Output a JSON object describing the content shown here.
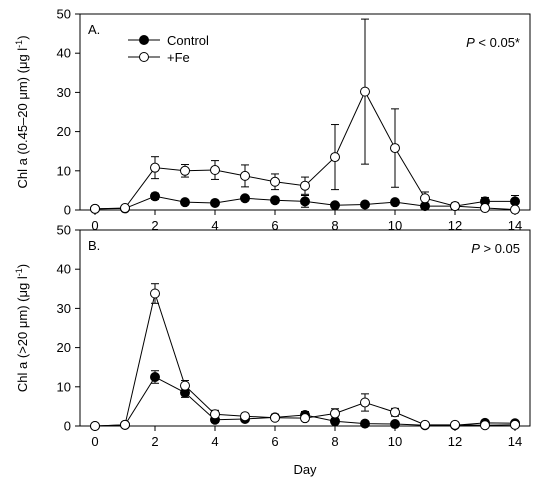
{
  "chart_data": [
    {
      "type": "line",
      "panel_label": "A.",
      "annotation_var": "P",
      "annotation_rest": " < 0.05*",
      "ylabel_parts": [
        "Chl a (0.45–20 ",
        "μ",
        "m) (",
        "μ",
        "g l",
        "-1",
        ")"
      ],
      "ylim": [
        0,
        50
      ],
      "yticks": [
        0,
        10,
        20,
        30,
        40,
        50
      ],
      "xlim": [
        -0.5,
        14.5
      ],
      "xticks": [
        0,
        2,
        4,
        6,
        8,
        10,
        12,
        14
      ],
      "grid": false,
      "legend_position": "top-left",
      "x": [
        0,
        1,
        2,
        3,
        4,
        5,
        6,
        7,
        8,
        9,
        10,
        11,
        12,
        13,
        14
      ],
      "series": [
        {
          "name": "Control",
          "marker": "filled-circle",
          "color": "#000000",
          "values": [
            0.3,
            0.4,
            3.5,
            2.0,
            1.8,
            3.0,
            2.5,
            2.2,
            1.2,
            1.4,
            2.0,
            1.0,
            1.0,
            2.2,
            2.2
          ],
          "errors": [
            0.5,
            0.4,
            0.8,
            0.5,
            0.5,
            0.6,
            0.6,
            1.5,
            0.5,
            0.5,
            0.5,
            0.4,
            0.4,
            1.0,
            1.5
          ]
        },
        {
          "name": "+Fe",
          "marker": "open-circle",
          "color": "#000000",
          "values": [
            0.3,
            0.5,
            10.8,
            10.0,
            10.2,
            8.7,
            7.2,
            6.2,
            13.5,
            30.2,
            15.8,
            3.0,
            1.0,
            0.5,
            0.1
          ],
          "errors": [
            0.3,
            0.4,
            2.8,
            1.6,
            2.4,
            2.8,
            2.0,
            2.2,
            8.3,
            18.5,
            10.0,
            1.6,
            0.8,
            0.4,
            0.3
          ]
        }
      ]
    },
    {
      "type": "line",
      "panel_label": "B.",
      "annotation_var": "P",
      "annotation_rest": " > 0.05",
      "ylabel_parts": [
        "Chl a (>20 ",
        "μ",
        "m) (",
        "μ",
        "g l",
        "-1",
        ")"
      ],
      "xlabel": "Day",
      "ylim": [
        0,
        50
      ],
      "yticks": [
        0,
        10,
        20,
        30,
        40,
        50
      ],
      "xlim": [
        -0.5,
        14.5
      ],
      "xticks": [
        0,
        2,
        4,
        6,
        8,
        10,
        12,
        14
      ],
      "grid": false,
      "x": [
        0,
        1,
        2,
        3,
        4,
        5,
        6,
        7,
        8,
        9,
        10,
        11,
        12,
        13,
        14
      ],
      "series": [
        {
          "name": "Control",
          "marker": "filled-circle",
          "color": "#000000",
          "values": [
            0.0,
            0.3,
            12.5,
            8.5,
            1.6,
            1.8,
            2.2,
            2.8,
            1.2,
            0.6,
            0.5,
            0.2,
            0.2,
            0.8,
            0.7
          ],
          "errors": [
            0.1,
            0.2,
            1.6,
            1.2,
            0.7,
            0.5,
            0.8,
            0.9,
            0.5,
            0.3,
            0.3,
            0.2,
            0.2,
            0.4,
            0.3
          ]
        },
        {
          "name": "+Fe",
          "marker": "open-circle",
          "color": "#000000",
          "values": [
            0.0,
            0.3,
            33.8,
            10.3,
            3.0,
            2.5,
            2.1,
            2.0,
            3.2,
            6.0,
            3.5,
            0.3,
            0.3,
            0.2,
            0.3
          ],
          "errors": [
            0.1,
            0.2,
            2.5,
            1.3,
            1.0,
            0.6,
            0.6,
            0.6,
            1.2,
            2.2,
            1.0,
            0.2,
            0.2,
            0.2,
            0.2
          ]
        }
      ]
    }
  ]
}
